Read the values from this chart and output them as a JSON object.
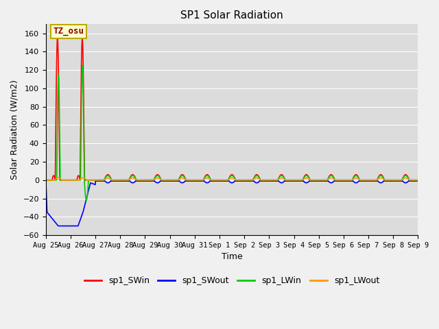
{
  "title": "SP1 Solar Radiation",
  "xlabel": "Time",
  "ylabel": "Solar Radiation (W/m2)",
  "ylim": [
    -60,
    170
  ],
  "yticks": [
    -60,
    -40,
    -20,
    0,
    20,
    40,
    60,
    80,
    100,
    120,
    140,
    160
  ],
  "annotation_text": "TZ_osu",
  "annotation_bg": "#ffffcc",
  "annotation_border": "#bbaa00",
  "fig_bg": "#f0f0f0",
  "plot_bg": "#dcdcdc",
  "grid_color": "#ffffff",
  "colors": {
    "sp1_SWin": "#ff0000",
    "sp1_SWout": "#0000ff",
    "sp1_LWin": "#00cc00",
    "sp1_LWout": "#ff9900"
  },
  "xtick_labels": [
    "Aug 25",
    "Aug 26",
    "Aug 27",
    "Aug 28",
    "Aug 29",
    "Aug 30",
    "Aug 31",
    "Sep 1",
    "Sep 2",
    "Sep 3",
    "Sep 4",
    "Sep 5",
    "Sep 6",
    "Sep 7",
    "Sep 8",
    "Sep 9"
  ],
  "n_days": 16
}
